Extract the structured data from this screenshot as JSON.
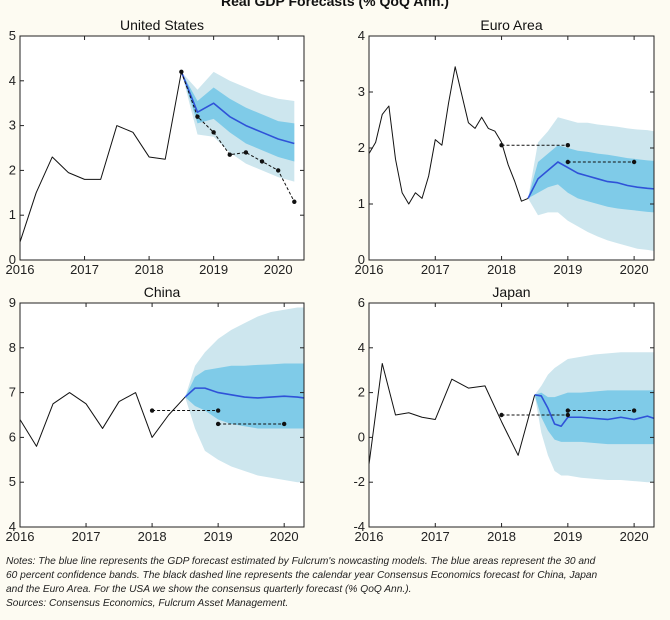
{
  "figure": {
    "title": "Real GDP Forecasts (% QoQ Ann.)"
  },
  "colors": {
    "outer_band": "#cde6ee",
    "inner_band": "#7fcbe8",
    "forecast_line": "#2f52d8",
    "history_line": "#111111",
    "consensus": "#111111"
  },
  "chart_data": [
    {
      "type": "line",
      "title": "United States",
      "xlim": [
        2016,
        2020.4
      ],
      "ylim": [
        0,
        5
      ],
      "xticks": [
        2016,
        2017,
        2018,
        2019,
        2020
      ],
      "yticks": [
        0,
        1,
        2,
        3,
        4,
        5
      ],
      "grid": false,
      "series": [
        {
          "role": "history",
          "x": [
            2016,
            2016.25,
            2016.5,
            2016.75,
            2017,
            2017.25,
            2017.5,
            2017.75,
            2018,
            2018.25,
            2018.5
          ],
          "y": [
            0.4,
            1.5,
            2.3,
            1.95,
            1.8,
            1.8,
            3.0,
            2.85,
            2.3,
            2.25,
            4.2
          ]
        },
        {
          "role": "forecast",
          "x": [
            2018.5,
            2018.75,
            2019,
            2019.25,
            2019.5,
            2019.75,
            2020,
            2020.25
          ],
          "y": [
            4.2,
            3.3,
            3.5,
            3.2,
            3.0,
            2.85,
            2.7,
            2.6
          ]
        },
        {
          "role": "band60",
          "x": [
            2018.5,
            2018.75,
            2019,
            2019.25,
            2019.5,
            2019.75,
            2020,
            2020.25
          ],
          "lower": [
            4.2,
            2.8,
            2.75,
            2.4,
            2.15,
            2.0,
            1.85,
            1.75
          ],
          "upper": [
            4.2,
            3.8,
            4.2,
            4.0,
            3.85,
            3.7,
            3.6,
            3.55
          ]
        },
        {
          "role": "band30",
          "x": [
            2018.5,
            2018.75,
            2019,
            2019.25,
            2019.5,
            2019.75,
            2020,
            2020.25
          ],
          "lower": [
            4.2,
            3.05,
            3.15,
            2.85,
            2.6,
            2.45,
            2.3,
            2.2
          ],
          "upper": [
            4.2,
            3.55,
            3.85,
            3.6,
            3.4,
            3.25,
            3.1,
            3.05
          ]
        },
        {
          "role": "consensus",
          "segments": [
            {
              "x": [
                2018.5,
                2018.75,
                2019,
                2019.25,
                2019.5,
                2019.75,
                2020,
                2020.25
              ],
              "y": [
                4.2,
                3.2,
                2.85,
                2.35,
                2.4,
                2.2,
                2.0,
                1.3
              ]
            }
          ]
        }
      ]
    },
    {
      "type": "line",
      "title": "Euro Area",
      "xlim": [
        2016,
        2020.3
      ],
      "ylim": [
        0,
        4
      ],
      "xticks": [
        2016,
        2017,
        2018,
        2019,
        2020
      ],
      "yticks": [
        0,
        1,
        2,
        3,
        4
      ],
      "grid": false,
      "series": [
        {
          "role": "history",
          "x": [
            2016,
            2016.1,
            2016.2,
            2016.3,
            2016.4,
            2016.5,
            2016.6,
            2016.7,
            2016.8,
            2016.9,
            2017,
            2017.1,
            2017.2,
            2017.3,
            2017.4,
            2017.5,
            2017.6,
            2017.7,
            2017.8,
            2017.9,
            2018,
            2018.1,
            2018.2,
            2018.3,
            2018.4
          ],
          "y": [
            1.9,
            2.1,
            2.6,
            2.75,
            1.8,
            1.2,
            1.0,
            1.2,
            1.1,
            1.5,
            2.15,
            2.05,
            2.8,
            3.45,
            2.95,
            2.45,
            2.35,
            2.55,
            2.35,
            2.3,
            2.1,
            1.7,
            1.4,
            1.05,
            1.1
          ]
        },
        {
          "role": "forecast",
          "x": [
            2018.4,
            2018.55,
            2018.7,
            2018.85,
            2019,
            2019.15,
            2019.3,
            2019.45,
            2019.6,
            2019.75,
            2019.9,
            2020.05,
            2020.2,
            2020.3
          ],
          "y": [
            1.1,
            1.45,
            1.6,
            1.75,
            1.65,
            1.55,
            1.5,
            1.45,
            1.4,
            1.38,
            1.33,
            1.3,
            1.28,
            1.27
          ]
        },
        {
          "role": "band60",
          "x": [
            2018.4,
            2018.55,
            2018.7,
            2018.85,
            2019,
            2019.15,
            2019.3,
            2019.45,
            2019.6,
            2019.75,
            2019.9,
            2020.05,
            2020.2,
            2020.3
          ],
          "lower": [
            1.1,
            0.8,
            0.85,
            0.85,
            0.7,
            0.6,
            0.5,
            0.42,
            0.35,
            0.3,
            0.25,
            0.2,
            0.18,
            0.16
          ],
          "upper": [
            1.1,
            2.1,
            2.3,
            2.55,
            2.5,
            2.45,
            2.45,
            2.42,
            2.4,
            2.38,
            2.35,
            2.33,
            2.32,
            2.3
          ]
        },
        {
          "role": "band30",
          "x": [
            2018.4,
            2018.55,
            2018.7,
            2018.85,
            2019,
            2019.15,
            2019.3,
            2019.45,
            2019.6,
            2019.75,
            2019.9,
            2020.05,
            2020.2,
            2020.3
          ],
          "lower": [
            1.1,
            1.2,
            1.3,
            1.35,
            1.2,
            1.1,
            1.05,
            1.0,
            0.95,
            0.92,
            0.9,
            0.88,
            0.86,
            0.85
          ],
          "upper": [
            1.1,
            1.75,
            1.9,
            2.05,
            2.0,
            1.95,
            1.93,
            1.9,
            1.88,
            1.85,
            1.82,
            1.8,
            1.78,
            1.77
          ]
        },
        {
          "role": "consensus",
          "segments": [
            {
              "x": [
                2018,
                2019
              ],
              "y": [
                2.05,
                2.05
              ]
            },
            {
              "x": [
                2019,
                2020
              ],
              "y": [
                1.75,
                1.75
              ]
            }
          ]
        }
      ]
    },
    {
      "type": "line",
      "title": "China",
      "xlim": [
        2016,
        2020.3
      ],
      "ylim": [
        4,
        9
      ],
      "xticks": [
        2016,
        2017,
        2018,
        2019,
        2020
      ],
      "yticks": [
        4,
        5,
        6,
        7,
        8,
        9
      ],
      "grid": false,
      "series": [
        {
          "role": "history",
          "x": [
            2016,
            2016.25,
            2016.5,
            2016.75,
            2017,
            2017.25,
            2017.5,
            2017.75,
            2018,
            2018.25,
            2018.5
          ],
          "y": [
            6.4,
            5.8,
            6.75,
            7.0,
            6.75,
            6.2,
            6.8,
            7.0,
            6.0,
            6.5,
            6.9
          ]
        },
        {
          "role": "forecast",
          "x": [
            2018.5,
            2018.65,
            2018.8,
            2019,
            2019.2,
            2019.4,
            2019.6,
            2019.8,
            2020,
            2020.2,
            2020.3
          ],
          "y": [
            6.9,
            7.1,
            7.1,
            7.0,
            6.95,
            6.9,
            6.88,
            6.9,
            6.92,
            6.9,
            6.88
          ]
        },
        {
          "role": "band60",
          "x": [
            2018.5,
            2018.65,
            2018.8,
            2019,
            2019.2,
            2019.4,
            2019.6,
            2019.8,
            2020,
            2020.2,
            2020.3
          ],
          "lower": [
            6.9,
            6.2,
            5.7,
            5.5,
            5.35,
            5.25,
            5.15,
            5.1,
            5.05,
            5.0,
            5.0
          ],
          "upper": [
            6.9,
            7.6,
            7.9,
            8.2,
            8.4,
            8.55,
            8.7,
            8.8,
            8.85,
            8.9,
            8.9
          ]
        },
        {
          "role": "band30",
          "x": [
            2018.5,
            2018.65,
            2018.8,
            2019,
            2019.2,
            2019.4,
            2019.6,
            2019.8,
            2020,
            2020.2,
            2020.3
          ],
          "lower": [
            6.9,
            6.7,
            6.6,
            6.4,
            6.3,
            6.25,
            6.2,
            6.2,
            6.2,
            6.2,
            6.2
          ],
          "upper": [
            6.9,
            7.35,
            7.5,
            7.55,
            7.6,
            7.6,
            7.62,
            7.63,
            7.65,
            7.65,
            7.65
          ]
        },
        {
          "role": "consensus",
          "segments": [
            {
              "x": [
                2018,
                2019
              ],
              "y": [
                6.6,
                6.6
              ]
            },
            {
              "x": [
                2019,
                2020
              ],
              "y": [
                6.3,
                6.3
              ]
            }
          ]
        }
      ]
    },
    {
      "type": "line",
      "title": "Japan",
      "xlim": [
        2016,
        2020.3
      ],
      "ylim": [
        -4,
        6
      ],
      "xticks": [
        2016,
        2017,
        2018,
        2019,
        2020
      ],
      "yticks": [
        -4,
        -2,
        0,
        2,
        4,
        6
      ],
      "grid": false,
      "series": [
        {
          "role": "history",
          "x": [
            2016,
            2016.2,
            2016.4,
            2016.6,
            2016.8,
            2017,
            2017.25,
            2017.5,
            2017.75,
            2018,
            2018.25,
            2018.5
          ],
          "y": [
            -1.2,
            3.3,
            1.0,
            1.1,
            0.9,
            0.8,
            2.6,
            2.2,
            2.3,
            0.7,
            -0.8,
            1.9
          ]
        },
        {
          "role": "forecast",
          "x": [
            2018.5,
            2018.6,
            2018.7,
            2018.8,
            2018.9,
            2019,
            2019.2,
            2019.4,
            2019.6,
            2019.8,
            2020,
            2020.2,
            2020.3
          ],
          "y": [
            1.9,
            1.85,
            1.3,
            0.6,
            0.5,
            0.9,
            0.9,
            0.85,
            0.8,
            0.9,
            0.8,
            0.95,
            0.85
          ]
        },
        {
          "role": "band60",
          "x": [
            2018.5,
            2018.6,
            2018.7,
            2018.8,
            2018.9,
            2019,
            2019.2,
            2019.4,
            2019.6,
            2019.8,
            2020,
            2020.2,
            2020.3
          ],
          "lower": [
            1.9,
            0.2,
            -0.8,
            -1.5,
            -1.7,
            -1.7,
            -1.8,
            -1.85,
            -1.9,
            -1.9,
            -1.95,
            -2.0,
            -2.0
          ],
          "upper": [
            1.9,
            2.3,
            2.8,
            3.1,
            3.3,
            3.5,
            3.6,
            3.7,
            3.75,
            3.8,
            3.8,
            3.8,
            3.8
          ]
        },
        {
          "role": "band30",
          "x": [
            2018.5,
            2018.6,
            2018.7,
            2018.8,
            2018.9,
            2019,
            2019.2,
            2019.4,
            2019.6,
            2019.8,
            2020,
            2020.2,
            2020.3
          ],
          "lower": [
            1.9,
            0.9,
            0.3,
            -0.1,
            -0.2,
            -0.2,
            -0.2,
            -0.25,
            -0.3,
            -0.3,
            -0.3,
            -0.3,
            -0.3
          ],
          "upper": [
            1.9,
            2.0,
            1.8,
            1.8,
            1.9,
            2.0,
            2.0,
            2.05,
            2.1,
            2.1,
            2.1,
            2.1,
            2.1
          ]
        },
        {
          "role": "consensus",
          "segments": [
            {
              "x": [
                2018,
                2019
              ],
              "y": [
                1.0,
                1.0
              ]
            },
            {
              "x": [
                2019,
                2020
              ],
              "y": [
                1.2,
                1.2
              ]
            }
          ]
        }
      ]
    }
  ],
  "notes": {
    "line1": "Notes: The blue line represents the GDP forecast estimated by Fulcrum's nowcasting models. The blue areas represent the 30 and",
    "line2": "60 percent confidence bands. The black dashed line represents the calendar year Consensus Economics forecast for China, Japan",
    "line3": "and the Euro Area. For the USA we show the consensus quarterly forecast (% QoQ Ann.).",
    "sources": "Sources: Consensus Economics, Fulcrum Asset Management."
  }
}
